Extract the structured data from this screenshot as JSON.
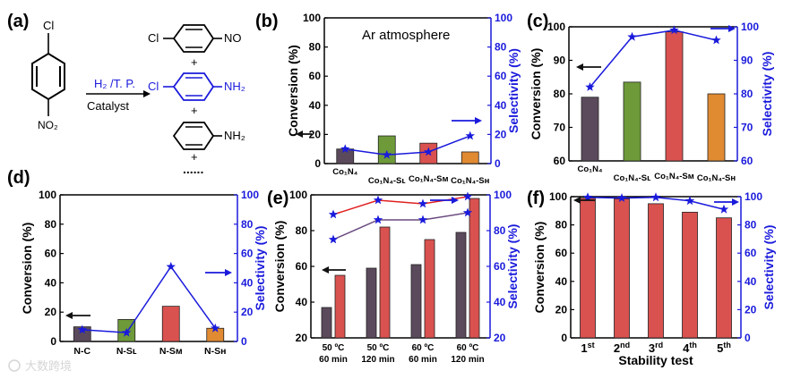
{
  "colors": {
    "selectivity": "#1a1adc",
    "bar_purple": "#5b4a5c",
    "bar_green": "#6e9a3a",
    "bar_red": "#d9524f",
    "bar_orange": "#e08a32",
    "line_red": "#e02020",
    "line_purple": "#6a4a80",
    "arrow_black": "#111111"
  },
  "scheme": {
    "panel_label": "(a)",
    "reactant_top": "Cl",
    "reactant_bottom": "NO₂",
    "conditions_top": "H₂ /T. P.",
    "conditions_bottom": "Catalyst",
    "product1_left": "Cl",
    "product1_right": "NO",
    "product2_left": "Cl",
    "product2_right": "NH₂",
    "product3_right": "NH₂",
    "plus": "+",
    "ellipsis": "......"
  },
  "chart_data": [
    {
      "panel": "(b)",
      "type": "bar",
      "annotation": "Ar atmosphere",
      "categories": [
        "Co1N4",
        "Co1N4-SL",
        "Co1N4-SM",
        "Co1N4-SH"
      ],
      "category_labels": [
        "Co₁N₄",
        "Co₁N₄-Sʟ",
        "Co₁N₄-Sᴍ",
        "Co₁N₄-Sʜ"
      ],
      "series": [
        {
          "name": "Conversion (%)",
          "axis": "left",
          "values": [
            10,
            19,
            14,
            8
          ]
        },
        {
          "name": "Selectivity (%)",
          "axis": "right",
          "type": "line",
          "values": [
            10,
            6,
            8,
            19
          ]
        }
      ],
      "ylabel_left": "Conversion (%)",
      "ylabel_right": "Selectivity (%)",
      "ylim_left": [
        0,
        100
      ],
      "ylim_right": [
        0,
        100
      ],
      "yticks": [
        "0",
        "20",
        "40",
        "60",
        "80",
        "100"
      ]
    },
    {
      "panel": "(c)",
      "type": "bar",
      "categories": [
        "Co1N4",
        "Co1N4-SL",
        "Co1N4-SM",
        "Co1N4-SH"
      ],
      "category_labels": [
        "Co₁N₄",
        "Co₁N₄-Sʟ",
        "Co₁N₄-Sᴍ",
        "Co₁N₄-Sʜ"
      ],
      "series": [
        {
          "name": "Conversion (%)",
          "axis": "left",
          "values": [
            79,
            83.5,
            98.5,
            80
          ]
        },
        {
          "name": "Selectivity (%)",
          "axis": "right",
          "type": "line",
          "values": [
            82,
            97,
            99,
            96
          ]
        }
      ],
      "ylabel_left": "Conversion (%)",
      "ylabel_right": "Selectivity (%)",
      "ylim_left": [
        60,
        100
      ],
      "ylim_right": [
        60,
        100
      ],
      "yticks": [
        "60",
        "70",
        "80",
        "90",
        "100"
      ]
    },
    {
      "panel": "(d)",
      "type": "bar",
      "categories": [
        "N-C",
        "N-SL",
        "N-SM",
        "N-SH"
      ],
      "category_labels": [
        "N-C",
        "N-Sʟ",
        "N-Sᴍ",
        "N-Sʜ"
      ],
      "series": [
        {
          "name": "Conversion (%)",
          "axis": "left",
          "values": [
            10,
            15,
            24,
            9
          ]
        },
        {
          "name": "Selectivity (%)",
          "axis": "right",
          "type": "line",
          "values": [
            8,
            6,
            51,
            9
          ]
        }
      ],
      "ylabel_left": "Conversion (%)",
      "ylabel_right": "Selectivity (%)",
      "ylim_left": [
        0,
        100
      ],
      "ylim_right": [
        0,
        100
      ],
      "yticks": [
        "0",
        "20",
        "40",
        "60",
        "80",
        "100"
      ]
    },
    {
      "panel": "(e)",
      "type": "bar",
      "categories": [
        "50 °C 60 min",
        "50 °C 120 min",
        "60 °C 60 min",
        "60 °C 120 min"
      ],
      "category_line1": [
        "50 ºC",
        "50 ºC",
        "60 ºC",
        "60 ºC"
      ],
      "category_line2": [
        "60 min",
        "120 min",
        "60 min",
        "120 min"
      ],
      "series": [
        {
          "name": "Conversion purple (%)",
          "axis": "left",
          "values": [
            37,
            59,
            61,
            79
          ]
        },
        {
          "name": "Conversion red (%)",
          "axis": "left",
          "values": [
            55,
            82,
            75,
            98
          ]
        },
        {
          "name": "Selectivity purple (%)",
          "axis": "right",
          "type": "line",
          "values": [
            75,
            86,
            86,
            90
          ]
        },
        {
          "name": "Selectivity red (%)",
          "axis": "right",
          "type": "line",
          "values": [
            89,
            97,
            95,
            99
          ]
        }
      ],
      "ylabel_left": "Conversion (%)",
      "ylabel_right": "Selectivity (%)",
      "ylim_left": [
        20,
        100
      ],
      "ylim_right": [
        20,
        100
      ],
      "yticks": [
        "20",
        "40",
        "60",
        "80",
        "100"
      ]
    },
    {
      "panel": "(f)",
      "type": "bar",
      "categories": [
        "1st",
        "2nd",
        "3rd",
        "4th",
        "5th"
      ],
      "category_base": [
        "1",
        "2",
        "3",
        "4",
        "5"
      ],
      "category_sup": [
        "st",
        "nd",
        "rd",
        "th",
        "th"
      ],
      "xlabel": "Stability test",
      "series": [
        {
          "name": "Conversion (%)",
          "axis": "left",
          "values": [
            99,
            98.5,
            95,
            89,
            85
          ]
        },
        {
          "name": "Selectivity (%)",
          "axis": "right",
          "type": "line",
          "values": [
            99.5,
            99,
            99.5,
            97,
            91
          ]
        }
      ],
      "ylabel_left": "Conversion (%)",
      "ylabel_right": "Selectivity (%)",
      "ylim_left": [
        0,
        100
      ],
      "ylim_right": [
        0,
        100
      ],
      "yticks": [
        "0",
        "20",
        "40",
        "60",
        "80",
        "100"
      ]
    }
  ],
  "watermark": "大数跨境"
}
